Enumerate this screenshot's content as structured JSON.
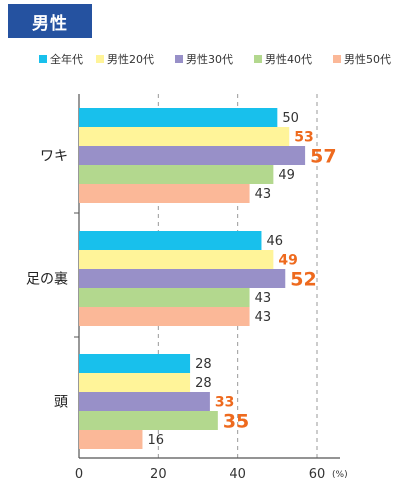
{
  "header": {
    "badge_label": "男性"
  },
  "colors": {
    "badge": "#2552a0",
    "axis": "#555555",
    "grid": "#999999",
    "label_default": "#333333",
    "label_highlight": "#ee6a1e"
  },
  "chart_data": {
    "type": "bar",
    "orientation": "horizontal",
    "categories": [
      "ワキ",
      "足の裏",
      "頭"
    ],
    "series": [
      {
        "name": "全年代",
        "color": "#18c0ec",
        "values": [
          50,
          46,
          28
        ]
      },
      {
        "name": "男性20代",
        "color": "#fff499",
        "values": [
          53,
          49,
          28
        ]
      },
      {
        "name": "男性30代",
        "color": "#9890c8",
        "values": [
          57,
          52,
          33
        ]
      },
      {
        "name": "男性40代",
        "color": "#b3d88e",
        "values": [
          49,
          43,
          35
        ]
      },
      {
        "name": "男性50代",
        "color": "#fbb898",
        "values": [
          43,
          43,
          16
        ]
      }
    ],
    "highlights": [
      {
        "category": 0,
        "series": 1,
        "size": "medium"
      },
      {
        "category": 0,
        "series": 2,
        "size": "large"
      },
      {
        "category": 1,
        "series": 1,
        "size": "medium"
      },
      {
        "category": 1,
        "series": 2,
        "size": "large"
      },
      {
        "category": 2,
        "series": 2,
        "size": "medium"
      },
      {
        "category": 2,
        "series": 3,
        "size": "large"
      }
    ],
    "xlim": [
      0,
      60
    ],
    "xticks": [
      0,
      20,
      40,
      60
    ],
    "unit_label": "(%)",
    "grid": "vertical-dashed",
    "legend_position": "top"
  }
}
